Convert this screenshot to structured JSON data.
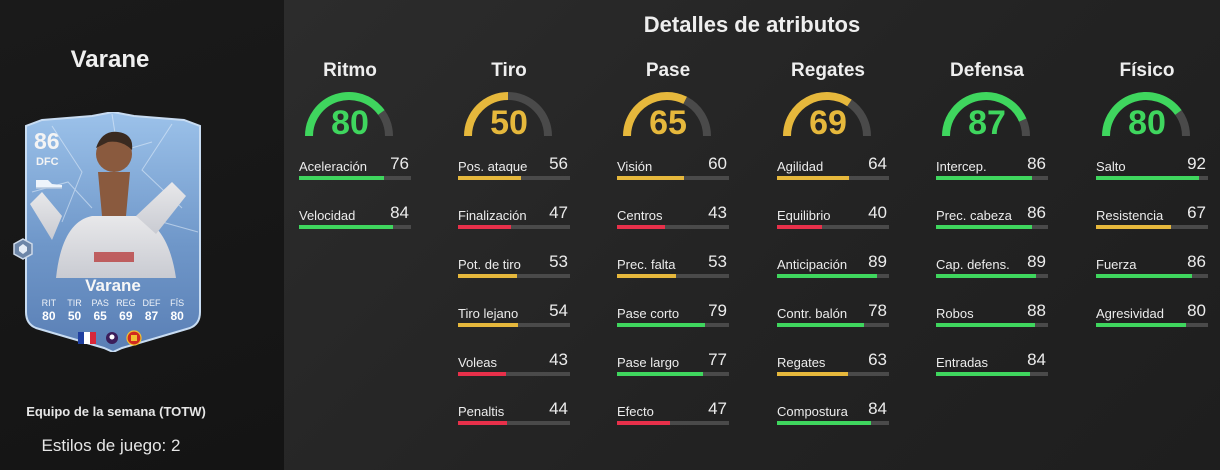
{
  "player": {
    "name": "Varane",
    "card_name": "Varane",
    "rating": "86",
    "position": "DFC",
    "team_label": "Equipo de la semana (TOTW)",
    "playstyles_label": "Estilos de juego: 2",
    "card_stats": [
      {
        "label": "RIT",
        "value": "80"
      },
      {
        "label": "TIR",
        "value": "50"
      },
      {
        "label": "PAS",
        "value": "65"
      },
      {
        "label": "REG",
        "value": "69"
      },
      {
        "label": "DEF",
        "value": "87"
      },
      {
        "label": "FÍS",
        "value": "80"
      }
    ],
    "card_icons": [
      "boot-icon",
      "france-flag-icon",
      "premier-league-icon",
      "manchester-united-crest-icon",
      "hexagon-badge-icon"
    ]
  },
  "page_title": "Detalles de atributos",
  "colors": {
    "green": "#3fd65e",
    "yellow": "#e6b83c",
    "red": "#e8304a",
    "track": "#4a4a4a"
  },
  "categories": [
    {
      "name": "Ritmo",
      "value": 80,
      "stats": [
        {
          "name": "Aceleración",
          "value": 76
        },
        {
          "name": "Velocidad",
          "value": 84
        }
      ]
    },
    {
      "name": "Tiro",
      "value": 50,
      "stats": [
        {
          "name": "Pos. ataque",
          "value": 56
        },
        {
          "name": "Finalización",
          "value": 47
        },
        {
          "name": "Pot. de tiro",
          "value": 53
        },
        {
          "name": "Tiro lejano",
          "value": 54
        },
        {
          "name": "Voleas",
          "value": 43
        },
        {
          "name": "Penaltis",
          "value": 44
        }
      ]
    },
    {
      "name": "Pase",
      "value": 65,
      "stats": [
        {
          "name": "Visión",
          "value": 60
        },
        {
          "name": "Centros",
          "value": 43
        },
        {
          "name": "Prec. falta",
          "value": 53
        },
        {
          "name": "Pase corto",
          "value": 79
        },
        {
          "name": "Pase largo",
          "value": 77
        },
        {
          "name": "Efecto",
          "value": 47
        }
      ]
    },
    {
      "name": "Regates",
      "value": 69,
      "stats": [
        {
          "name": "Agilidad",
          "value": 64
        },
        {
          "name": "Equilibrio",
          "value": 40
        },
        {
          "name": "Anticipación",
          "value": 89
        },
        {
          "name": "Contr. balón",
          "value": 78
        },
        {
          "name": "Regates",
          "value": 63
        },
        {
          "name": "Compostura",
          "value": 84
        }
      ]
    },
    {
      "name": "Defensa",
      "value": 87,
      "stats": [
        {
          "name": "Intercep.",
          "value": 86
        },
        {
          "name": "Prec. cabeza",
          "value": 86
        },
        {
          "name": "Cap. defens.",
          "value": 89
        },
        {
          "name": "Robos",
          "value": 88
        },
        {
          "name": "Entradas",
          "value": 84
        }
      ]
    },
    {
      "name": "Físico",
      "value": 80,
      "stats": [
        {
          "name": "Salto",
          "value": 92
        },
        {
          "name": "Resistencia",
          "value": 67
        },
        {
          "name": "Fuerza",
          "value": 86
        },
        {
          "name": "Agresividad",
          "value": 80
        }
      ]
    }
  ]
}
